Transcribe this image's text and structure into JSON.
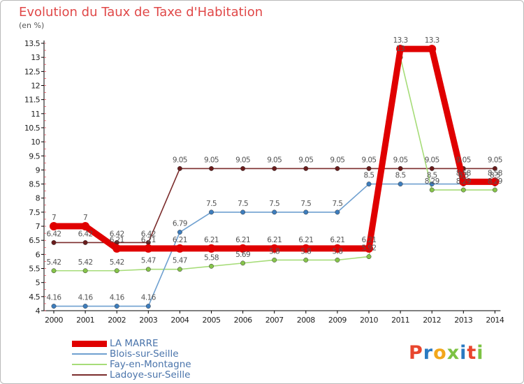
{
  "title": "Evolution du Taux de Taxe d'Habitation",
  "unit_label": "(en %)",
  "logo_text": "Proxiti",
  "logo_colors": [
    "#e8462e",
    "#2a7ac2",
    "#f2a71b",
    "#7cc243",
    "#2a7ac2",
    "#e8462e",
    "#7cc243"
  ],
  "chart_data": {
    "type": "line",
    "x": [
      2000,
      2001,
      2002,
      2003,
      2004,
      2005,
      2006,
      2007,
      2008,
      2009,
      2010,
      2011,
      2012,
      2013,
      2014
    ],
    "ylim": [
      4,
      13.5
    ],
    "yticks": [
      4,
      4.5,
      5,
      5.5,
      6,
      6.5,
      7,
      7.5,
      8,
      8.5,
      9,
      9.5,
      10,
      10.5,
      11,
      11.5,
      12,
      12.5,
      13,
      13.5
    ],
    "grid": false,
    "legend_position": "bottom-left",
    "series": [
      {
        "name": "LA MARRE",
        "color": "#e00000",
        "point_color": "#e00000",
        "labels": [
          "7",
          "7",
          "6.21",
          "6.21",
          "6.21",
          "6.21",
          "6.21",
          "6.21",
          "6.21",
          "6.21",
          "6.21",
          "13.3",
          "13.3",
          "8.58",
          "8.58"
        ],
        "values": [
          7,
          7,
          6.21,
          6.21,
          6.21,
          6.21,
          6.21,
          6.21,
          6.21,
          6.21,
          6.21,
          13.3,
          13.3,
          8.58,
          8.58
        ]
      },
      {
        "name": "Blois-sur-Seille",
        "color": "#6fa0d0",
        "point_color": "#3d7dbd",
        "labels": [
          "4.16",
          "4.16",
          "4.16",
          "4.16",
          "6.79",
          "7.5",
          "7.5",
          "7.5",
          "7.5",
          "7.5",
          "8.5",
          "8.5",
          "8.5",
          "8.5",
          "8.5"
        ],
        "values": [
          4.16,
          4.16,
          4.16,
          4.16,
          6.79,
          7.5,
          7.5,
          7.5,
          7.5,
          7.5,
          8.5,
          8.5,
          8.5,
          8.5,
          8.5
        ]
      },
      {
        "name": "Fay-en-Montagne",
        "color": "#a6dc78",
        "point_color": "#86c44a",
        "labels": [
          "5.42",
          "5.42",
          "5.42",
          "5.47",
          "5.47",
          "5.58",
          "5.69",
          "5.8",
          "5.8",
          "5.8",
          "5.92",
          "13",
          "8.29",
          "8.29",
          "8.29"
        ],
        "values": [
          5.42,
          5.42,
          5.42,
          5.47,
          5.47,
          5.58,
          5.69,
          5.8,
          5.8,
          5.8,
          5.92,
          13,
          8.29,
          8.29,
          8.29
        ]
      },
      {
        "name": "Ladoye-sur-Seille",
        "color": "#7b2c2c",
        "point_color": "#6a1c1c",
        "labels": [
          "6.42",
          "6.42",
          "6.42",
          "6.42",
          "9.05",
          "9.05",
          "9.05",
          "9.05",
          "9.05",
          "9.05",
          "9.05",
          "9.05",
          "9.05",
          "9.05",
          "9.05"
        ],
        "values": [
          6.42,
          6.42,
          6.42,
          6.42,
          9.05,
          9.05,
          9.05,
          9.05,
          9.05,
          9.05,
          9.05,
          9.05,
          9.05,
          9.05,
          9.05
        ]
      }
    ]
  }
}
